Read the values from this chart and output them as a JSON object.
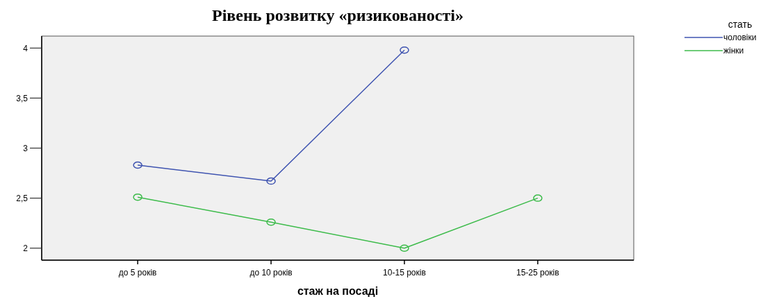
{
  "chart_data": {
    "type": "line",
    "title": "Рівень розвитку «ризикованості»",
    "xlabel": "стаж на посаді",
    "legend_title": "стать",
    "categories": [
      "до 5 років",
      "до 10 років",
      "10-15 років",
      "15-25 років"
    ],
    "series": [
      {
        "name": "чоловіки",
        "color": "#3e53b0",
        "values": [
          2.83,
          2.67,
          3.98,
          null
        ]
      },
      {
        "name": "жінки",
        "color": "#3cbb4a",
        "values": [
          2.51,
          2.26,
          2.0,
          2.5
        ]
      }
    ],
    "ylim": [
      1.88,
      4.12
    ],
    "yticks": [
      {
        "value": 2,
        "label": "2"
      },
      {
        "value": 2.5,
        "label": "2,5"
      },
      {
        "value": 3,
        "label": "3"
      },
      {
        "value": 3.5,
        "label": "3,5"
      },
      {
        "value": 4,
        "label": "4"
      }
    ],
    "marker": "circle",
    "line_style": "solid",
    "legend": "top right",
    "grid": false
  }
}
